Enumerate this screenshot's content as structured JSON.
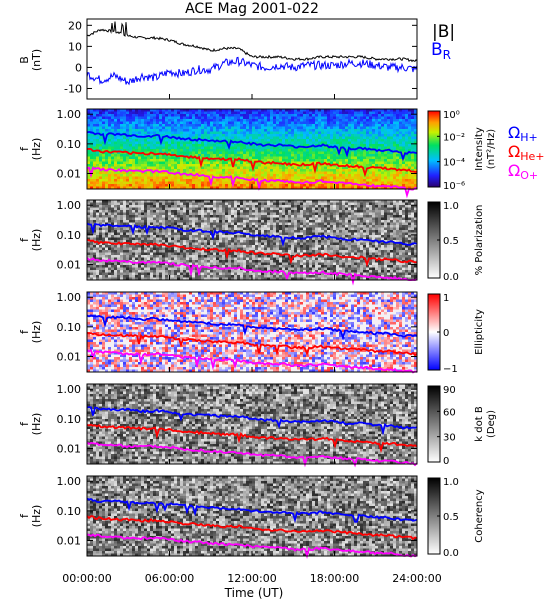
{
  "title": "ACE Mag 2001-022",
  "colors": {
    "B_total": "#000000",
    "B_R": "#0000ff",
    "omega_H": "#0000ff",
    "omega_He": "#ff0000",
    "omega_O": "#ff00ff"
  },
  "legend_top": {
    "B": "|B|",
    "BR": "B",
    "BR_sub": "R"
  },
  "legend_gyro": [
    {
      "symbol": "Ω",
      "sub": "H+",
      "color": "#0000ff"
    },
    {
      "symbol": "Ω",
      "sub": "He+",
      "color": "#ff0000"
    },
    {
      "symbol": "Ω",
      "sub": "O+",
      "color": "#ff00ff"
    }
  ],
  "xaxis": {
    "label": "Time (UT)",
    "ticks": [
      "00:00:00",
      "06:00:00",
      "12:00:00",
      "18:00:00",
      "24:00:00"
    ],
    "range_hours": [
      0,
      24
    ]
  },
  "panel_b": {
    "ylabel": "B",
    "yunit": "(nT)",
    "ticks": [
      "20",
      "10",
      "0",
      "-10"
    ],
    "tick_values": [
      20,
      10,
      0,
      -10
    ],
    "ylim": [
      -15,
      23
    ]
  },
  "spectral_panels": [
    {
      "ylabel": "f",
      "yunit": "(Hz)",
      "bar_title": "Intensity",
      "bar_unit": "(nT²/Hz)",
      "bar_ticks": [
        "10⁰",
        "10⁻²",
        "10⁻⁴",
        "10⁻⁶"
      ],
      "colormap": "rainbow"
    },
    {
      "ylabel": "f",
      "yunit": "(Hz)",
      "bar_title": "% Polarization",
      "bar_unit": "",
      "bar_ticks": [
        "1.0",
        "0.5",
        "0.0"
      ],
      "colormap": "gray"
    },
    {
      "ylabel": "f",
      "yunit": "(Hz)",
      "bar_title": "Ellipticity",
      "bar_unit": "",
      "bar_ticks": [
        "1",
        "0",
        "−1"
      ],
      "colormap": "bwr"
    },
    {
      "ylabel": "f",
      "yunit": "(Hz)",
      "bar_title": "k dot B",
      "bar_unit": "(Deg)",
      "bar_ticks": [
        "90",
        "60",
        "30",
        "0"
      ],
      "colormap": "gray"
    },
    {
      "ylabel": "f",
      "yunit": "(Hz)",
      "bar_title": "Coherency",
      "bar_unit": "",
      "bar_ticks": [
        "1.0",
        "0.5",
        "0.0"
      ],
      "colormap": "gray"
    }
  ],
  "freq_ticks": [
    "1.00",
    "0.10",
    "0.01"
  ],
  "chart_data": {
    "type": "line",
    "title": "ACE Mag 2001-022",
    "xlabel": "Time (UT)",
    "x_hours": [
      0,
      1,
      2,
      3,
      4,
      5,
      6,
      7,
      8,
      9,
      10,
      11,
      12,
      13,
      14,
      15,
      16,
      17,
      18,
      19,
      20,
      21,
      22,
      23,
      24
    ],
    "series": [
      {
        "name": "|B|",
        "panel": "B",
        "values": [
          15,
          18,
          17,
          15,
          14,
          14,
          13,
          11,
          10,
          8,
          9,
          9,
          5,
          5,
          5,
          4,
          4,
          5,
          5,
          5,
          5,
          4,
          4,
          4,
          3
        ]
      },
      {
        "name": "B_R",
        "panel": "B",
        "values": [
          -3,
          -6,
          -4,
          -7,
          -4,
          -5,
          -2,
          -3,
          -1,
          -1,
          2,
          3,
          1,
          0,
          1,
          0,
          1,
          1,
          1,
          2,
          2,
          1,
          0,
          0,
          -1
        ]
      },
      {
        "name": "Ω_H+",
        "panel": "spectra",
        "values": [
          0.25,
          0.21,
          0.21,
          0.2,
          0.18,
          0.19,
          0.17,
          0.15,
          0.14,
          0.13,
          0.12,
          0.12,
          0.1,
          0.09,
          0.09,
          0.08,
          0.08,
          0.09,
          0.08,
          0.07,
          0.07,
          0.06,
          0.06,
          0.05,
          0.05
        ]
      },
      {
        "name": "Ω_He+",
        "panel": "spectra",
        "values": [
          0.065,
          0.055,
          0.052,
          0.05,
          0.047,
          0.048,
          0.043,
          0.038,
          0.035,
          0.032,
          0.03,
          0.03,
          0.025,
          0.023,
          0.023,
          0.02,
          0.02,
          0.022,
          0.02,
          0.018,
          0.017,
          0.015,
          0.015,
          0.013,
          0.012
        ]
      },
      {
        "name": "Ω_O+",
        "panel": "spectra",
        "values": [
          0.016,
          0.014,
          0.013,
          0.012,
          0.012,
          0.012,
          0.011,
          0.0095,
          0.009,
          0.008,
          0.0075,
          0.0075,
          0.0063,
          0.0058,
          0.0057,
          0.005,
          0.005,
          0.0055,
          0.005,
          0.0045,
          0.0043,
          0.0038,
          0.0037,
          0.0033,
          0.003
        ]
      }
    ],
    "b_ylim": [
      -15,
      23
    ],
    "f_ylim": [
      0.003,
      1.5
    ],
    "f_scale": "log"
  }
}
